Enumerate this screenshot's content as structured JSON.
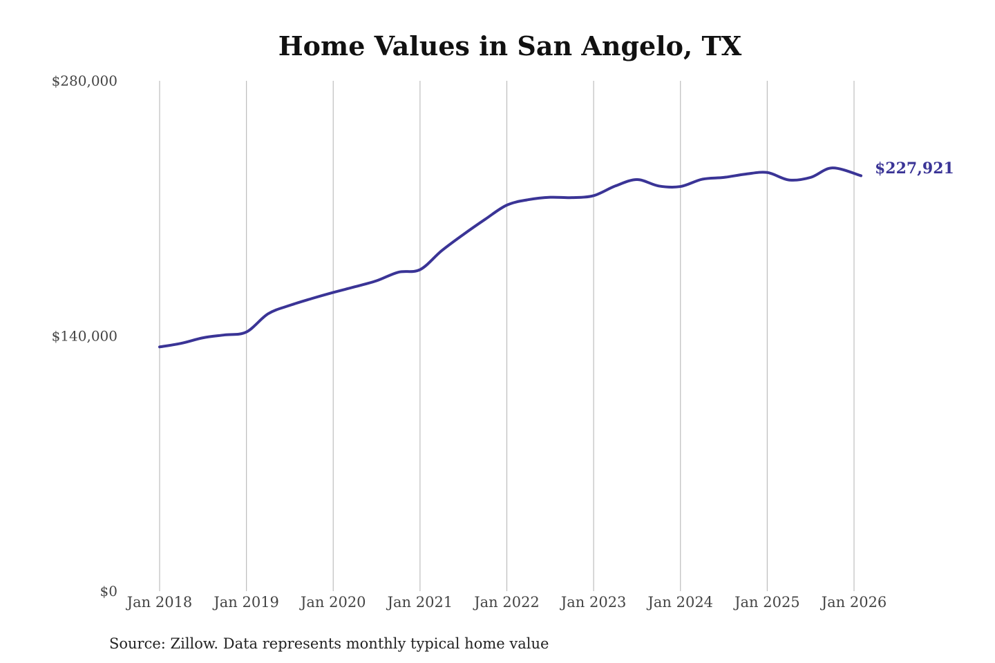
{
  "chart_data": {
    "type": "line",
    "title": "Home Values in San Angelo, TX",
    "xlabel": "",
    "ylabel": "",
    "ylim": [
      0,
      280000
    ],
    "yticks": [
      {
        "value": 0,
        "label": "$0"
      },
      {
        "value": 140000,
        "label": "$140,000"
      },
      {
        "value": 280000,
        "label": "$280,000"
      }
    ],
    "xlim": [
      2018.0,
      2026.0
    ],
    "xticks": [
      {
        "value": 2018,
        "label": "Jan 2018"
      },
      {
        "value": 2019,
        "label": "Jan 2019"
      },
      {
        "value": 2020,
        "label": "Jan 2020"
      },
      {
        "value": 2021,
        "label": "Jan 2021"
      },
      {
        "value": 2022,
        "label": "Jan 2022"
      },
      {
        "value": 2023,
        "label": "Jan 2023"
      },
      {
        "value": 2024,
        "label": "Jan 2024"
      },
      {
        "value": 2025,
        "label": "Jan 2025"
      },
      {
        "value": 2026,
        "label": "Jan 2026"
      }
    ],
    "grid": "vertical",
    "legend": "none",
    "line_color": "#3a3496",
    "series": [
      {
        "x": [
          "Jan 2018",
          "Apr 2018",
          "Jul 2018",
          "Oct 2018",
          "Jan 2019",
          "Apr 2019",
          "Jul 2019",
          "Oct 2019",
          "Jan 2020",
          "Apr 2020",
          "Jul 2020",
          "Oct 2020",
          "Jan 2021",
          "Apr 2021",
          "Jul 2021",
          "Oct 2021",
          "Jan 2022",
          "Apr 2022",
          "Jul 2022",
          "Oct 2022",
          "Jan 2023",
          "Apr 2023",
          "Jul 2023",
          "Oct 2023",
          "Jan 2024",
          "Apr 2024",
          "Jul 2024",
          "Oct 2024",
          "Jan 2025",
          "Apr 2025",
          "Jul 2025",
          "Oct 2025",
          "Feb 2026"
        ],
        "values": [
          134000,
          136000,
          139000,
          140600,
          142200,
          152200,
          156800,
          160500,
          163900,
          167000,
          170300,
          175000,
          176400,
          186800,
          195700,
          204000,
          211800,
          214800,
          216100,
          215900,
          217000,
          222300,
          225800,
          222300,
          222000,
          226000,
          227000,
          228800,
          229700,
          225600,
          227000,
          232200,
          227921
        ]
      }
    ],
    "x_numeric": [
      2018.0,
      2018.25,
      2018.5,
      2018.75,
      2019.0,
      2019.25,
      2019.5,
      2019.75,
      2020.0,
      2020.25,
      2020.5,
      2020.75,
      2021.0,
      2021.25,
      2021.5,
      2021.75,
      2022.0,
      2022.25,
      2022.5,
      2022.75,
      2023.0,
      2023.25,
      2023.5,
      2023.75,
      2024.0,
      2024.25,
      2024.5,
      2024.75,
      2025.0,
      2025.25,
      2025.5,
      2025.75,
      2026.08
    ],
    "end_label": "$227,921",
    "source": "Source: Zillow. Data represents monthly typical home value"
  }
}
